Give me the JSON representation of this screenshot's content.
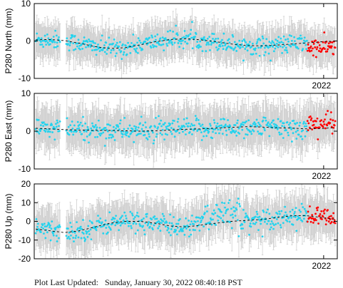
{
  "footer": {
    "label": "Plot Last Updated:",
    "timestamp": "Sunday, January 30, 2022 08:40:18 PST"
  },
  "colors": {
    "point": "#22d3ee",
    "recent_point": "#ff0000",
    "error_bar": "#cfcfcf",
    "model_line": "#000000"
  },
  "chart_data": [
    {
      "type": "scatter",
      "ylabel": "P280 North (mm)",
      "ylim": [
        -10,
        10
      ],
      "yticks": [
        -10,
        0,
        10
      ],
      "xtick_label": "2022",
      "trend": [
        [
          0.0,
          0.3
        ],
        [
          0.05,
          0.4
        ],
        [
          0.1,
          0.1
        ],
        [
          0.15,
          -0.6
        ],
        [
          0.2,
          -1.5
        ],
        [
          0.25,
          -2.0
        ],
        [
          0.3,
          -1.8
        ],
        [
          0.35,
          -1.0
        ],
        [
          0.4,
          -0.2
        ],
        [
          0.45,
          0.4
        ],
        [
          0.5,
          0.6
        ],
        [
          0.55,
          0.3
        ],
        [
          0.6,
          -0.2
        ],
        [
          0.65,
          -0.8
        ],
        [
          0.7,
          -1.2
        ],
        [
          0.75,
          -1.3
        ],
        [
          0.8,
          -1.1
        ],
        [
          0.85,
          -0.8
        ],
        [
          0.9,
          -0.5
        ],
        [
          0.95,
          -0.2
        ],
        [
          1.0,
          0.0
        ]
      ],
      "noise": 2.2,
      "recent_offset": -1.5
    },
    {
      "type": "scatter",
      "ylabel": "P280 East (mm)",
      "ylim": [
        -10,
        10
      ],
      "yticks": [
        -10,
        0,
        10
      ],
      "xtick_label": "2022",
      "trend": [
        [
          0.0,
          0.8
        ],
        [
          0.05,
          0.6
        ],
        [
          0.1,
          0.4
        ],
        [
          0.15,
          0.3
        ],
        [
          0.2,
          0.2
        ],
        [
          0.25,
          0.2
        ],
        [
          0.3,
          0.1
        ],
        [
          0.35,
          0.0
        ],
        [
          0.4,
          0.1
        ],
        [
          0.45,
          0.3
        ],
        [
          0.5,
          0.5
        ],
        [
          0.55,
          0.6
        ],
        [
          0.6,
          0.8
        ],
        [
          0.65,
          1.0
        ],
        [
          0.7,
          1.2
        ],
        [
          0.75,
          1.1
        ],
        [
          0.8,
          0.9
        ],
        [
          0.85,
          0.8
        ],
        [
          0.9,
          0.6
        ],
        [
          0.95,
          0.7
        ],
        [
          1.0,
          1.0
        ]
      ],
      "noise": 2.6,
      "recent_offset": 1.2
    },
    {
      "type": "scatter",
      "ylabel": "P280 Up (mm)",
      "ylim": [
        -20,
        20
      ],
      "yticks": [
        -20,
        -10,
        0,
        10,
        20
      ],
      "xtick_label": "2022",
      "trend": [
        [
          0.0,
          -4
        ],
        [
          0.05,
          -5
        ],
        [
          0.1,
          -6
        ],
        [
          0.15,
          -5
        ],
        [
          0.2,
          -3
        ],
        [
          0.25,
          -1
        ],
        [
          0.3,
          0
        ],
        [
          0.35,
          0
        ],
        [
          0.4,
          -1
        ],
        [
          0.45,
          -2.5
        ],
        [
          0.5,
          -3
        ],
        [
          0.55,
          -2
        ],
        [
          0.6,
          -1
        ],
        [
          0.65,
          0
        ],
        [
          0.7,
          0.5
        ],
        [
          0.75,
          1
        ],
        [
          0.8,
          2
        ],
        [
          0.85,
          3
        ],
        [
          0.9,
          3
        ],
        [
          0.95,
          2
        ],
        [
          1.0,
          1
        ]
      ],
      "noise": 5.0,
      "recent_offset": 0
    }
  ]
}
